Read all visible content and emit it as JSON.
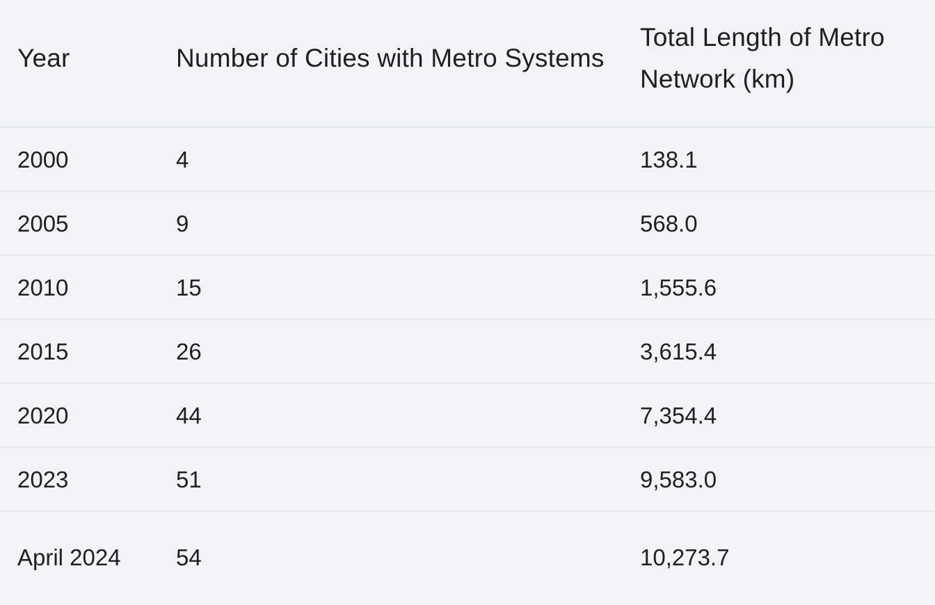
{
  "table": {
    "headers": [
      "Year",
      "Number of Cities with Metro Systems",
      "Total Length of Metro Network (km)"
    ],
    "rows": [
      [
        "2000",
        "4",
        "138.1"
      ],
      [
        "2005",
        "9",
        "568.0"
      ],
      [
        "2010",
        "15",
        "1,555.6"
      ],
      [
        "2015",
        "26",
        "3,615.4"
      ],
      [
        "2020",
        "44",
        "7,354.4"
      ],
      [
        "2023",
        "51",
        "9,583.0"
      ],
      [
        "April 2024",
        "54",
        "10,273.7"
      ]
    ]
  }
}
